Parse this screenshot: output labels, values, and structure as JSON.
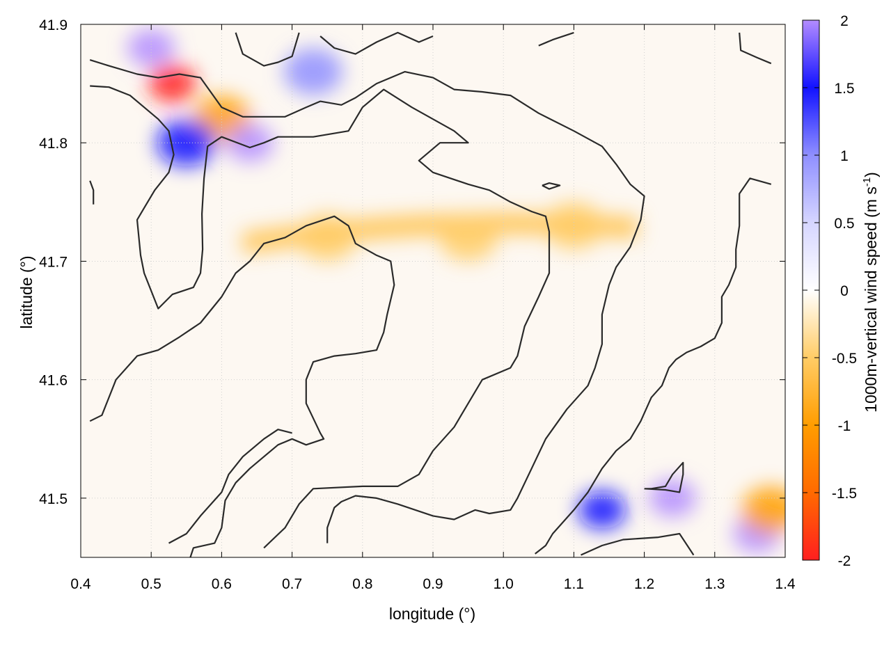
{
  "chart_data": {
    "type": "heatmap",
    "title": "",
    "xlabel": "longitude (°)",
    "ylabel": "latitude (°)",
    "xlim": [
      0.4,
      1.4
    ],
    "ylim": [
      41.45,
      41.9
    ],
    "x_ticks": [
      "0.4",
      "0.5",
      "0.6",
      "0.7",
      "0.8",
      "0.9",
      "1.0",
      "1.1",
      "1.2",
      "1.3",
      "1.4"
    ],
    "y_ticks": [
      "41.5",
      "41.6",
      "41.7",
      "41.8",
      "41.9"
    ],
    "grid": true,
    "colorbar": {
      "label": "1000m-vertical wind speed (m s",
      "label_superscript": "-1",
      "label_close": ")",
      "range": [
        -2,
        2
      ],
      "ticks": [
        "2",
        "1.5",
        "1",
        "0.5",
        "0",
        "-0.5",
        "-1",
        "-1.5",
        "-2"
      ],
      "colors": [
        "#ff1f1f",
        "#ff6a00",
        "#ff9d00",
        "#ffcc66",
        "#ffffff",
        "#d6d6ff",
        "#8f8fff",
        "#1212ff",
        "#b38cff"
      ]
    },
    "field_features": [
      {
        "lon": 0.53,
        "lat": 41.85,
        "value": -1.8
      },
      {
        "lon": 0.6,
        "lat": 41.82,
        "value": -1.2
      },
      {
        "lon": 0.75,
        "lat": 41.72,
        "value": -0.7
      },
      {
        "lon": 0.95,
        "lat": 41.72,
        "value": -0.7
      },
      {
        "lon": 1.1,
        "lat": 41.73,
        "value": -0.7
      },
      {
        "lon": 0.5,
        "lat": 41.88,
        "value": 1.8
      },
      {
        "lon": 0.64,
        "lat": 41.8,
        "value": 1.9
      },
      {
        "lon": 0.73,
        "lat": 41.86,
        "value": 1.2
      },
      {
        "lon": 0.55,
        "lat": 41.8,
        "value": 1.5
      },
      {
        "lon": 1.24,
        "lat": 41.5,
        "value": 1.8
      },
      {
        "lon": 1.36,
        "lat": 41.47,
        "value": 1.9
      },
      {
        "lon": 1.38,
        "lat": 41.49,
        "value": -1.2
      },
      {
        "lon": 1.14,
        "lat": 41.49,
        "value": 1.6
      }
    ],
    "contours": [
      [
        [
          0.413,
          41.848
        ],
        [
          0.44,
          41.847
        ],
        [
          0.47,
          41.84
        ],
        [
          0.49,
          41.83
        ],
        [
          0.51,
          41.82
        ],
        [
          0.525,
          41.81
        ],
        [
          0.532,
          41.79
        ],
        [
          0.525,
          41.775
        ],
        [
          0.505,
          41.76
        ],
        [
          0.49,
          41.745
        ],
        [
          0.48,
          41.735
        ],
        [
          0.485,
          41.705
        ],
        [
          0.49,
          41.69
        ],
        [
          0.51,
          41.66
        ],
        [
          0.53,
          41.672
        ],
        [
          0.56,
          41.678
        ],
        [
          0.57,
          41.69
        ],
        [
          0.573,
          41.71
        ],
        [
          0.572,
          41.74
        ],
        [
          0.575,
          41.77
        ],
        [
          0.58,
          41.797
        ],
        [
          0.6,
          41.805
        ],
        [
          0.64,
          41.796
        ],
        [
          0.66,
          41.8
        ],
        [
          0.68,
          41.805
        ],
        [
          0.73,
          41.805
        ],
        [
          0.78,
          41.81
        ],
        [
          0.8,
          41.83
        ],
        [
          0.83,
          41.845
        ],
        [
          0.87,
          41.83
        ],
        [
          0.9,
          41.82
        ],
        [
          0.93,
          41.81
        ],
        [
          0.95,
          41.8
        ],
        [
          0.91,
          41.8
        ],
        [
          0.88,
          41.785
        ],
        [
          0.9,
          41.775
        ],
        [
          0.95,
          41.765
        ],
        [
          0.98,
          41.76
        ],
        [
          1.01,
          41.75
        ],
        [
          1.04,
          41.742
        ],
        [
          1.06,
          41.738
        ],
        [
          1.065,
          41.725
        ],
        [
          1.065,
          41.69
        ],
        [
          1.05,
          41.67
        ],
        [
          1.03,
          41.645
        ],
        [
          1.02,
          41.62
        ],
        [
          1.01,
          41.61
        ],
        [
          0.97,
          41.6
        ],
        [
          0.95,
          41.58
        ],
        [
          0.93,
          41.56
        ],
        [
          0.9,
          41.54
        ],
        [
          0.88,
          41.52
        ],
        [
          0.85,
          41.51
        ],
        [
          0.8,
          41.51
        ],
        [
          0.73,
          41.508
        ],
        [
          0.71,
          41.495
        ],
        [
          0.69,
          41.475
        ],
        [
          0.66,
          41.458
        ]
      ],
      [
        [
          0.413,
          41.87
        ],
        [
          0.44,
          41.865
        ],
        [
          0.48,
          41.858
        ],
        [
          0.51,
          41.855
        ],
        [
          0.54,
          41.858
        ],
        [
          0.57,
          41.855
        ],
        [
          0.6,
          41.83
        ],
        [
          0.63,
          41.822
        ],
        [
          0.69,
          41.822
        ],
        [
          0.72,
          41.83
        ],
        [
          0.74,
          41.835
        ],
        [
          0.77,
          41.832
        ],
        [
          0.79,
          41.838
        ],
        [
          0.82,
          41.85
        ],
        [
          0.86,
          41.86
        ],
        [
          0.9,
          41.855
        ],
        [
          0.93,
          41.845
        ],
        [
          0.97,
          41.843
        ],
        [
          1.01,
          41.84
        ],
        [
          1.05,
          41.825
        ],
        [
          1.1,
          41.81
        ],
        [
          1.14,
          41.797
        ],
        [
          1.16,
          41.782
        ],
        [
          1.18,
          41.765
        ],
        [
          1.2,
          41.755
        ],
        [
          1.195,
          41.735
        ],
        [
          1.18,
          41.712
        ],
        [
          1.16,
          41.695
        ],
        [
          1.15,
          41.68
        ],
        [
          1.14,
          41.655
        ],
        [
          1.14,
          41.63
        ],
        [
          1.13,
          41.61
        ],
        [
          1.12,
          41.595
        ],
        [
          1.09,
          41.575
        ],
        [
          1.06,
          41.55
        ],
        [
          1.04,
          41.525
        ],
        [
          1.02,
          41.5
        ],
        [
          1.01,
          41.49
        ],
        [
          0.98,
          41.487
        ],
        [
          0.96,
          41.49
        ],
        [
          0.93,
          41.482
        ],
        [
          0.9,
          41.485
        ],
        [
          0.85,
          41.495
        ],
        [
          0.82,
          41.5
        ],
        [
          0.79,
          41.502
        ],
        [
          0.77,
          41.497
        ],
        [
          0.76,
          41.492
        ],
        [
          0.75,
          41.475
        ],
        [
          0.75,
          41.462
        ]
      ],
      [
        [
          0.413,
          41.565
        ],
        [
          0.43,
          41.57
        ],
        [
          0.45,
          41.6
        ],
        [
          0.48,
          41.62
        ],
        [
          0.51,
          41.625
        ],
        [
          0.54,
          41.636
        ],
        [
          0.57,
          41.648
        ],
        [
          0.6,
          41.67
        ],
        [
          0.62,
          41.69
        ],
        [
          0.64,
          41.7
        ],
        [
          0.66,
          41.715
        ],
        [
          0.69,
          41.72
        ],
        [
          0.72,
          41.73
        ],
        [
          0.745,
          41.735
        ],
        [
          0.76,
          41.738
        ],
        [
          0.78,
          41.73
        ],
        [
          0.79,
          41.715
        ],
        [
          0.82,
          41.705
        ],
        [
          0.84,
          41.7
        ],
        [
          0.845,
          41.68
        ],
        [
          0.835,
          41.655
        ],
        [
          0.83,
          41.64
        ],
        [
          0.82,
          41.625
        ],
        [
          0.79,
          41.622
        ],
        [
          0.76,
          41.62
        ],
        [
          0.73,
          41.615
        ],
        [
          0.72,
          41.6
        ],
        [
          0.72,
          41.58
        ],
        [
          0.74,
          41.555
        ],
        [
          0.745,
          41.55
        ],
        [
          0.72,
          41.545
        ],
        [
          0.7,
          41.55
        ],
        [
          0.68,
          41.545
        ],
        [
          0.66,
          41.535
        ],
        [
          0.64,
          41.525
        ],
        [
          0.62,
          41.513
        ],
        [
          0.605,
          41.498
        ],
        [
          0.6,
          41.475
        ],
        [
          0.59,
          41.462
        ],
        [
          0.56,
          41.458
        ],
        [
          0.55,
          41.44
        ]
      ],
      [
        [
          0.525,
          41.462
        ],
        [
          0.55,
          41.47
        ],
        [
          0.57,
          41.485
        ],
        [
          0.6,
          41.505
        ],
        [
          0.61,
          41.52
        ],
        [
          0.63,
          41.535
        ],
        [
          0.66,
          41.55
        ],
        [
          0.68,
          41.558
        ],
        [
          0.7,
          41.555
        ]
      ],
      [
        [
          0.74,
          41.89
        ],
        [
          0.76,
          41.88
        ],
        [
          0.79,
          41.875
        ],
        [
          0.82,
          41.885
        ],
        [
          0.85,
          41.893
        ],
        [
          0.88,
          41.885
        ],
        [
          0.9,
          41.89
        ]
      ],
      [
        [
          0.62,
          41.893
        ],
        [
          0.63,
          41.875
        ],
        [
          0.66,
          41.865
        ],
        [
          0.68,
          41.868
        ],
        [
          0.7,
          41.873
        ],
        [
          0.71,
          41.893
        ]
      ],
      [
        [
          0.413,
          41.768
        ],
        [
          0.418,
          41.76
        ],
        [
          0.418,
          41.748
        ]
      ],
      [
        [
          1.05,
          41.882
        ],
        [
          1.07,
          41.887
        ],
        [
          1.1,
          41.893
        ]
      ],
      [
        [
          1.335,
          41.893
        ],
        [
          1.337,
          41.878
        ],
        [
          1.36,
          41.872
        ],
        [
          1.38,
          41.867
        ]
      ],
      [
        [
          1.38,
          41.765
        ],
        [
          1.35,
          41.77
        ],
        [
          1.335,
          41.757
        ],
        [
          1.335,
          41.73
        ],
        [
          1.33,
          41.71
        ],
        [
          1.33,
          41.695
        ],
        [
          1.32,
          41.68
        ],
        [
          1.31,
          41.67
        ],
        [
          1.31,
          41.648
        ],
        [
          1.3,
          41.635
        ],
        [
          1.28,
          41.628
        ],
        [
          1.26,
          41.623
        ],
        [
          1.245,
          41.617
        ],
        [
          1.235,
          41.61
        ],
        [
          1.225,
          41.595
        ],
        [
          1.21,
          41.585
        ],
        [
          1.195,
          41.565
        ],
        [
          1.18,
          41.55
        ],
        [
          1.16,
          41.54
        ],
        [
          1.14,
          41.525
        ],
        [
          1.12,
          41.505
        ],
        [
          1.1,
          41.49
        ],
        [
          1.07,
          41.47
        ],
        [
          1.06,
          41.46
        ],
        [
          1.045,
          41.453
        ]
      ],
      [
        [
          1.11,
          41.452
        ],
        [
          1.14,
          41.46
        ],
        [
          1.17,
          41.465
        ],
        [
          1.22,
          41.467
        ],
        [
          1.25,
          41.47
        ],
        [
          1.27,
          41.452
        ]
      ],
      [
        [
          1.2,
          41.508
        ],
        [
          1.23,
          41.507
        ],
        [
          1.25,
          41.505
        ],
        [
          1.255,
          41.52
        ],
        [
          1.255,
          41.53
        ],
        [
          1.24,
          41.52
        ],
        [
          1.23,
          41.51
        ],
        [
          1.21,
          41.508
        ],
        [
          1.2,
          41.508
        ]
      ],
      [
        [
          1.055,
          41.764
        ],
        [
          1.065,
          41.766
        ],
        [
          1.08,
          41.764
        ],
        [
          1.065,
          41.761
        ],
        [
          1.055,
          41.764
        ]
      ]
    ]
  }
}
